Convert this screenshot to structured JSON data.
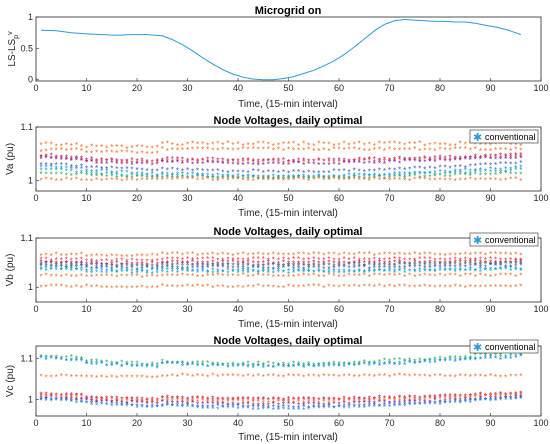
{
  "chart_data": [
    {
      "id": "p1",
      "type": "line",
      "title": "Microgrid on",
      "xlabel": "Time, (15-min interval)",
      "ylabel": "LS-LS",
      "ylabel_sub": "p",
      "ylabel_tail": "v",
      "xlim": [
        0,
        100
      ],
      "ylim": [
        -0.02,
        1.0
      ],
      "xticks": [
        "0",
        "10",
        "20",
        "30",
        "40",
        "50",
        "60",
        "70",
        "80",
        "90",
        "100"
      ],
      "yticks": [
        {
          "v": 0,
          "label": "0"
        },
        {
          "v": 0.5,
          "label": "0.5"
        },
        {
          "v": 1,
          "label": "1"
        }
      ],
      "legend": null,
      "series": [
        {
          "color": "#2b9bd8",
          "x": [
            1,
            4,
            7,
            10,
            13,
            16,
            19,
            22,
            25,
            27,
            29,
            31,
            33,
            35,
            37,
            39,
            41,
            43,
            45,
            47,
            49,
            51,
            53,
            55,
            57,
            59,
            61,
            63,
            65,
            67,
            69,
            71,
            73,
            75,
            77,
            79,
            81,
            83,
            85,
            87,
            89,
            91,
            93,
            95,
            96
          ],
          "y": [
            0.79,
            0.78,
            0.75,
            0.73,
            0.72,
            0.71,
            0.72,
            0.72,
            0.7,
            0.64,
            0.56,
            0.46,
            0.35,
            0.25,
            0.16,
            0.09,
            0.04,
            0.01,
            0.0,
            0.0,
            0.02,
            0.05,
            0.1,
            0.15,
            0.22,
            0.3,
            0.4,
            0.52,
            0.65,
            0.78,
            0.88,
            0.94,
            0.96,
            0.95,
            0.94,
            0.93,
            0.93,
            0.92,
            0.92,
            0.9,
            0.87,
            0.84,
            0.8,
            0.75,
            0.72
          ]
        }
      ]
    },
    {
      "id": "p2",
      "type": "scatter",
      "title": "Node Voltages, daily optimal",
      "xlabel": "Time, (15-min interval)",
      "ylabel": "Va (pu)",
      "xlim": [
        0,
        100
      ],
      "ylim": [
        0.98,
        1.1
      ],
      "xticks": [
        "0",
        "10",
        "20",
        "30",
        "40",
        "50",
        "60",
        "70",
        "80",
        "90",
        "100"
      ],
      "yticks": [
        {
          "v": 1,
          "label": "1"
        },
        {
          "v": 1.1,
          "label": "1.1"
        }
      ],
      "legend": {
        "label": "conventional",
        "position": "top-right"
      },
      "series": [
        {
          "color": "#f36b21",
          "b": 1.065,
          "e": 1.065,
          "j": 0.003,
          "s": 0.004,
          "a": 0.0
        },
        {
          "color": "#f36b21",
          "b": 1.055,
          "e": 1.055,
          "j": 0.002,
          "s": 0.004,
          "a": 0.0
        },
        {
          "color": "#c2185b",
          "b": 1.045,
          "e": 1.045,
          "j": 0.002,
          "s": 0.003,
          "a": 0.01
        },
        {
          "color": "#e53935",
          "b": 1.042,
          "e": 1.043,
          "j": 0.002,
          "s": 0.003,
          "a": 0.01
        },
        {
          "color": "#7b1fa2",
          "b": 1.04,
          "e": 1.041,
          "j": 0.002,
          "s": 0.003,
          "a": 0.012
        },
        {
          "color": "#3f51b5",
          "b": 1.03,
          "e": 1.03,
          "j": 0.002,
          "s": 0.002,
          "a": 0.016
        },
        {
          "color": "#1e88e5",
          "b": 1.025,
          "e": 1.022,
          "j": 0.002,
          "s": 0.002,
          "a": 0.018
        },
        {
          "color": "#00acc1",
          "b": 1.018,
          "e": 1.018,
          "j": 0.002,
          "s": 0.002,
          "a": 0.015
        },
        {
          "color": "#43a047",
          "b": 1.012,
          "e": 1.012,
          "j": 0.002,
          "s": 0.001,
          "a": 0.01
        },
        {
          "color": "#f36b21",
          "b": 1.0,
          "e": 1.0,
          "j": 0.002,
          "s": 0.001,
          "a": 0.0
        }
      ]
    },
    {
      "id": "p3",
      "type": "scatter",
      "title": "Node Voltages, daily optimal",
      "xlabel": "Time, (15-min interval)",
      "ylabel": "Vb (pu)",
      "xlim": [
        0,
        100
      ],
      "ylim": [
        0.97,
        1.1
      ],
      "xticks": [
        "0",
        "10",
        "20",
        "30",
        "40",
        "50",
        "60",
        "70",
        "80",
        "90",
        "100"
      ],
      "yticks": [
        {
          "v": 1,
          "label": "1"
        },
        {
          "v": 1.1,
          "label": "1.1"
        }
      ],
      "legend": {
        "label": "conventional",
        "position": "top-right"
      },
      "series": [
        {
          "color": "#f36b21",
          "b": 1.065,
          "e": 1.065,
          "j": 0.002,
          "s": 0.002,
          "a": 0.0
        },
        {
          "color": "#e53935",
          "b": 1.055,
          "e": 1.055,
          "j": 0.002,
          "s": 0.002,
          "a": 0.0
        },
        {
          "color": "#c2185b",
          "b": 1.05,
          "e": 1.05,
          "j": 0.002,
          "s": 0.002,
          "a": 0.002
        },
        {
          "color": "#7b1fa2",
          "b": 1.047,
          "e": 1.047,
          "j": 0.002,
          "s": 0.002,
          "a": 0.004
        },
        {
          "color": "#43a047",
          "b": 1.045,
          "e": 1.046,
          "j": 0.002,
          "s": 0.002,
          "a": 0.003
        },
        {
          "color": "#3f51b5",
          "b": 1.042,
          "e": 1.042,
          "j": 0.002,
          "s": 0.002,
          "a": 0.005
        },
        {
          "color": "#1e88e5",
          "b": 1.038,
          "e": 1.036,
          "j": 0.002,
          "s": 0.002,
          "a": 0.006
        },
        {
          "color": "#00acc1",
          "b": 1.034,
          "e": 1.034,
          "j": 0.002,
          "s": 0.002,
          "a": 0.006
        },
        {
          "color": "#f36b21",
          "b": 1.022,
          "e": 1.022,
          "j": 0.002,
          "s": 0.001,
          "a": 0.0
        },
        {
          "color": "#f36b21",
          "b": 1.0,
          "e": 1.0,
          "j": 0.002,
          "s": 0.001,
          "a": 0.0
        }
      ]
    },
    {
      "id": "p4",
      "type": "scatter",
      "title": "Node Voltages, daily optimal",
      "xlabel": "Time, (15-min interval)",
      "ylabel": "Vc (pu)",
      "xlim": [
        0,
        100
      ],
      "ylim": [
        0.96,
        1.13
      ],
      "xticks": [
        "0",
        "10",
        "20",
        "30",
        "40",
        "50",
        "60",
        "70",
        "80",
        "90",
        "100"
      ],
      "yticks": [
        {
          "v": 1,
          "label": "1"
        },
        {
          "v": 1.1,
          "label": "1.1"
        }
      ],
      "legend": {
        "label": "conventional",
        "position": "top-right"
      },
      "series": [
        {
          "color": "#43a047",
          "b": 1.105,
          "e": 1.11,
          "j": 0.003,
          "s": 0.006,
          "a": 0.025
        },
        {
          "color": "#00acc1",
          "b": 1.1,
          "e": 1.104,
          "j": 0.003,
          "s": 0.006,
          "a": 0.025
        },
        {
          "color": "#1e88e5",
          "b": 1.098,
          "e": 1.1,
          "j": 0.003,
          "s": 0.005,
          "a": 0.022
        },
        {
          "color": "#f36b21",
          "b": 1.055,
          "e": 1.055,
          "j": 0.002,
          "s": 0.002,
          "a": 0.0
        },
        {
          "color": "#c2185b",
          "b": 1.012,
          "e": 1.012,
          "j": 0.002,
          "s": 0.004,
          "a": 0.014
        },
        {
          "color": "#e53935",
          "b": 1.01,
          "e": 1.01,
          "j": 0.002,
          "s": 0.004,
          "a": 0.014
        },
        {
          "color": "#f36b21",
          "b": 1.006,
          "e": 1.008,
          "j": 0.002,
          "s": 0.004,
          "a": 0.016
        },
        {
          "color": "#7b1fa2",
          "b": 1.004,
          "e": 1.004,
          "j": 0.002,
          "s": 0.003,
          "a": 0.018
        },
        {
          "color": "#3f51b5",
          "b": 1.0,
          "e": 1.002,
          "j": 0.002,
          "s": 0.003,
          "a": 0.022
        },
        {
          "color": "#1e88e5",
          "b": 0.998,
          "e": 1.0,
          "j": 0.002,
          "s": 0.003,
          "a": 0.024
        }
      ]
    }
  ]
}
